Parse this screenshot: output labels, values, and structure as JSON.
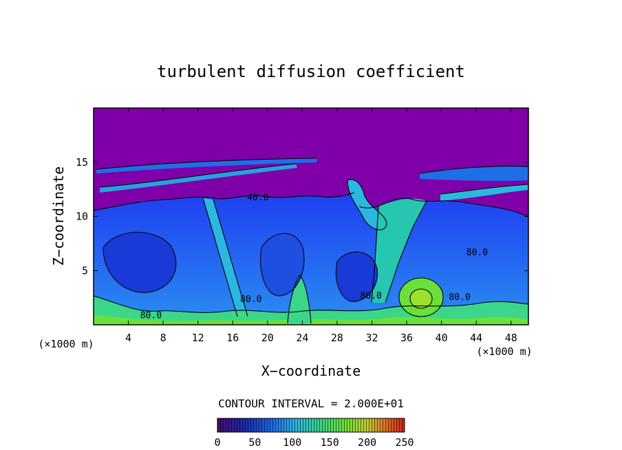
{
  "chart_data": {
    "type": "heatmap",
    "title": "turbulent diffusion coefficient",
    "xlabel": "X−coordinate",
    "ylabel": "Z−coordinate",
    "x_unit_left": "(×1000 m)",
    "x_unit_right": "(×1000 m)",
    "xlim": [
      0,
      50
    ],
    "ylim": [
      0,
      20
    ],
    "xticks": [
      4,
      8,
      12,
      16,
      20,
      24,
      28,
      32,
      36,
      40,
      44,
      48
    ],
    "yticks": [
      5,
      10,
      15
    ],
    "contour_interval_text": "CONTOUR INTERVAL = 2.000E+01",
    "contour_interval": 20,
    "contour_labels": [
      {
        "text": "80.0",
        "x": 6.6,
        "z": 0.6
      },
      {
        "text": "80.0",
        "x": 18.1,
        "z": 2.1
      },
      {
        "text": "80.0",
        "x": 31.9,
        "z": 2.4
      },
      {
        "text": "80.0",
        "x": 42.1,
        "z": 2.3
      },
      {
        "text": "80.0",
        "x": 44.1,
        "z": 6.4
      },
      {
        "text": "40.0",
        "x": 18.9,
        "z": 11.5
      }
    ],
    "colorbar": {
      "min": 0,
      "max": 250,
      "tick_labels": [
        "0",
        "50",
        "100",
        "150",
        "200",
        "250"
      ],
      "tick_values": [
        0,
        50,
        100,
        150,
        200,
        250
      ],
      "colors": [
        "#4a0a70",
        "#1a2ab0",
        "#1f6ee8",
        "#2ab8e0",
        "#3cd68a",
        "#6ae03a",
        "#c0d030",
        "#e07020",
        "#d02020"
      ]
    },
    "colors": {
      "low": "#7f00a8",
      "mid": "#1f5fef",
      "high": "#48e030",
      "contour": "#000000"
    }
  }
}
